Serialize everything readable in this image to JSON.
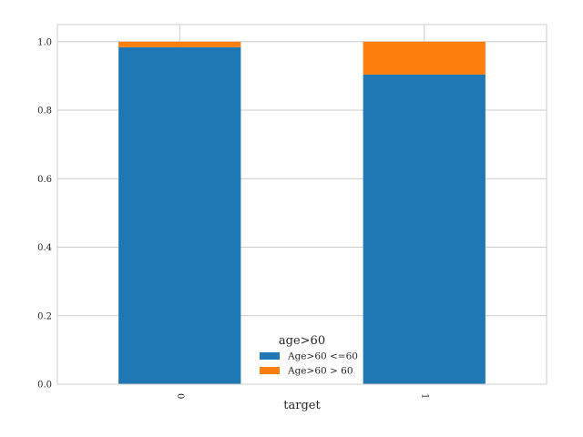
{
  "chart_data": {
    "type": "bar",
    "stacked": true,
    "categories": [
      "0",
      "1"
    ],
    "series": [
      {
        "name": "Age>60 <=60",
        "values": [
          0.984,
          0.904
        ],
        "color": "#1f77b4"
      },
      {
        "name": "Age>60 > 60",
        "values": [
          0.016,
          0.096
        ],
        "color": "#ff7f0e"
      }
    ],
    "xlabel": "target",
    "ylabel": "",
    "ylim": [
      0,
      1.05
    ],
    "yticks": [
      "0.0",
      "0.2",
      "0.4",
      "0.6",
      "0.8",
      "1.0"
    ],
    "grid": true,
    "legend": {
      "title": "age>60",
      "placement": "bottom-center"
    }
  }
}
